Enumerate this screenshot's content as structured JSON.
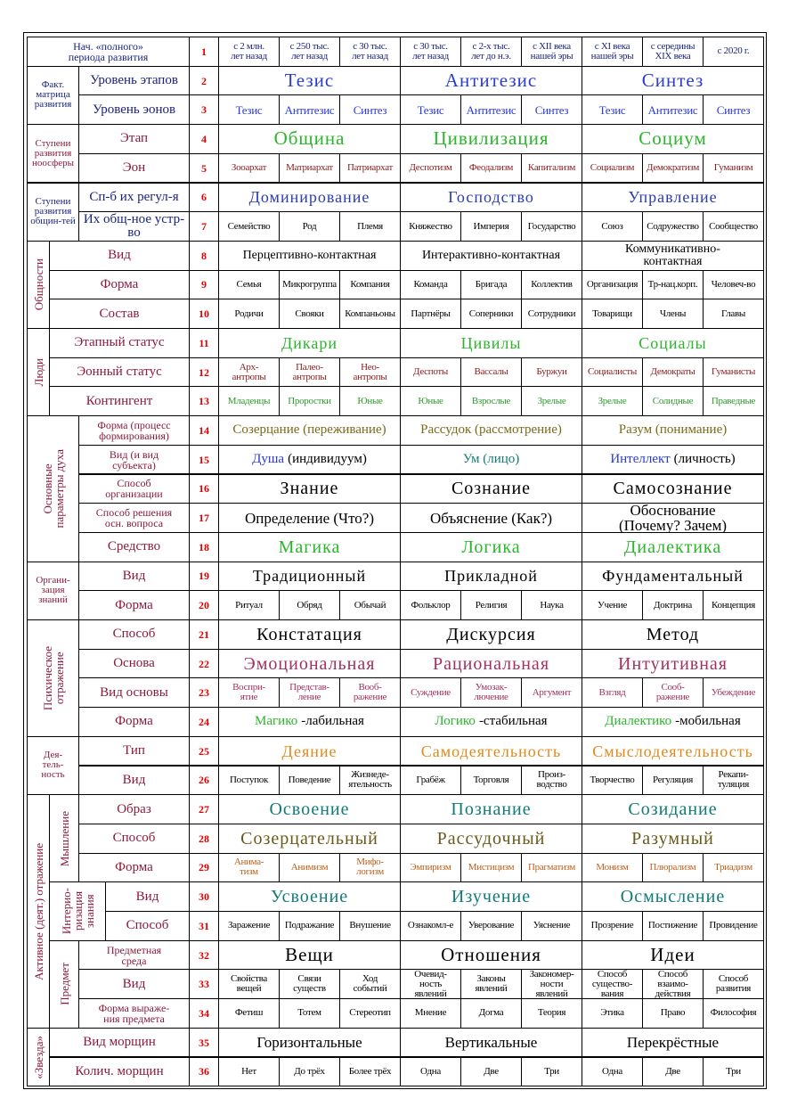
{
  "header": {
    "number": 1,
    "label": "Нач. «полного»\nпериода развития",
    "color": "#1a237e",
    "cells": [
      "с 2 млн.\nлет назад",
      "с 250 тыс.\nлет назад",
      "с 30 тыс.\nлет назад",
      "с 30 тыс.\nлет назад",
      "с 2-х тыс.\nлет до н.э.",
      "с XII века\nнашей эры",
      "с XI века\nнашей эры",
      "с середины\nXIX века",
      "с 2020 г."
    ]
  },
  "groups": [
    {
      "label": "Факт.\nматрица\nразвития",
      "label_color": "#1a237e",
      "rows": [
        {
          "number": 2,
          "label": "Уровень этапов",
          "color": "#2a3bd6",
          "cells": [
            "Тезис",
            "Антитезис",
            "Синтез"
          ]
        },
        {
          "number": 3,
          "label": "Уровень эонов",
          "color": "#2a3bd6",
          "cells": [
            "Тезис",
            "Антитезис",
            "Синтез",
            "Тезис",
            "Антитезис",
            "Синтез",
            "Тезис",
            "Антитезис",
            "Синтез"
          ]
        }
      ]
    },
    {
      "label": "Ступени\nразвития\nноосферы",
      "label_color": "#8b1a3a",
      "rows": [
        {
          "number": 4,
          "label": "Этап",
          "color": "#2bb52b",
          "cells": [
            "Община",
            "Цивилизация",
            "Социум"
          ]
        },
        {
          "number": 5,
          "label": "Эон",
          "color": "#8b1a1a",
          "cells": [
            "Зооархат",
            "Матриархат",
            "Патриархат",
            "Деспотизм",
            "Феодализм",
            "Капитализм",
            "Социализм",
            "Демократизм",
            "Гуманизм"
          ]
        }
      ]
    },
    {
      "label": "Ступени\nразвития\nобщин-тей",
      "label_color": "#1a237e",
      "rows": [
        {
          "number": 6,
          "label": "Сп-б их регул-я",
          "color": "#2a3bb6",
          "cells": [
            "Доминирование",
            "Господство",
            "Управление"
          ]
        },
        {
          "number": 7,
          "label": "Их общ-ное устр-во",
          "color": "#000000",
          "cells": [
            "Семейство",
            "Род",
            "Племя",
            "Княжество",
            "Империя",
            "Государство",
            "Союз",
            "Содружество",
            "Сообщество"
          ]
        }
      ]
    },
    {
      "label": "Общности",
      "vertical": true,
      "label_color": "#8b1a3a",
      "rows": [
        {
          "number": 8,
          "label": "Вид",
          "color": "#000000",
          "cells": [
            "Перцептивно-контактная",
            "Интерактивно-контактная",
            "Коммуникативно-\nконтактная"
          ]
        },
        {
          "number": 9,
          "label": "Форма",
          "color": "#000000",
          "cells": [
            "Семья",
            "Микрогруппа",
            "Компания",
            "Команда",
            "Бригада",
            "Коллектив",
            "Организация",
            "Тр-нац.корп.",
            "Человеч-во"
          ]
        },
        {
          "number": 10,
          "label": "Состав",
          "color": "#000000",
          "cells": [
            "Родичи",
            "Свояки",
            "Компаньоны",
            "Партнёры",
            "Соперники",
            "Сотрудники",
            "Товарищи",
            "Члены",
            "Главы"
          ]
        }
      ]
    },
    {
      "label": "Люди",
      "vertical": true,
      "label_color": "#8b1a3a",
      "rows": [
        {
          "number": 11,
          "label": "Этапный статус",
          "color": "#2bb52b",
          "cells": [
            "Дикари",
            "Цивилы",
            "Социалы"
          ]
        },
        {
          "number": 12,
          "label": "Эонный статус",
          "color": "#8b1a1a",
          "cells": [
            "Арх-\nантропы",
            "Палео-\nантропы",
            "Нео-\nантропы",
            "Деспоты",
            "Вассалы",
            "Буржуи",
            "Социалисты",
            "Демократы",
            "Гуманисты"
          ]
        },
        {
          "number": 13,
          "label": "Контингент",
          "color": "#2b9b2b",
          "cells": [
            "Младенцы",
            "Проростки",
            "Юные",
            "Юные",
            "Взрослые",
            "Зрелые",
            "Зрелые",
            "Солидные",
            "Праведные"
          ]
        }
      ]
    },
    {
      "label": "Основные\nпараметры духа",
      "vertical": true,
      "label_color": "#8b1a3a",
      "rows": [
        {
          "number": 14,
          "label": "Форма (процесс\nформирования)",
          "color": "#7a6a1a",
          "cells": [
            "Созерцание (переживание)",
            "Рассудок (рассмотрение)",
            "Разум (понимание)"
          ]
        },
        {
          "number": 15,
          "label": "Вид  (и вид\nсубъекта)",
          "color": "#137a7a",
          "part_colors": [
            "#2a3bd6",
            "#000000"
          ],
          "cells": [
            [
              "Душа",
              "(индивидуум)"
            ],
            "Ум (лицо)",
            [
              "Интеллект",
              "(личность)"
            ]
          ]
        },
        {
          "number": 16,
          "label": "Способ\nорганизации",
          "color": "#000000",
          "cells": [
            "Знание",
            "Сознание",
            "Самосознание"
          ]
        },
        {
          "number": 17,
          "label": "Способ решения\nосн. вопроса",
          "color": "#000000",
          "cells": [
            "Определение (Что?)",
            "Объяснение (Как?)",
            "Обоснование\n(Почему? Зачем)"
          ]
        },
        {
          "number": 18,
          "label": "Средство",
          "color": "#2bb52b",
          "cells": [
            "Магика",
            "Логика",
            "Диалектика"
          ]
        }
      ]
    },
    {
      "label": "Органи-\nзация\nзнаний",
      "label_color": "#8b1a3a",
      "rows": [
        {
          "number": 19,
          "label": "Вид",
          "color": "#000000",
          "cells": [
            "Традиционный",
            "Прикладной",
            "Фундаментальный"
          ]
        },
        {
          "number": 20,
          "label": "Форма",
          "color": "#000000",
          "cells": [
            "Ритуал",
            "Обряд",
            "Обычай",
            "Фольклор",
            "Религия",
            "Наука",
            "Учение",
            "Доктрина",
            "Концепция"
          ]
        }
      ]
    },
    {
      "label": "Психическое\nотражение",
      "vertical": true,
      "label_color": "#8b1a3a",
      "rows": [
        {
          "number": 21,
          "label": "Способ",
          "color": "#000000",
          "cells": [
            "Констатация",
            "Дискурсия",
            "Метод"
          ]
        },
        {
          "number": 22,
          "label": "Основа",
          "color": "#a3305e",
          "cells": [
            "Эмоциональная",
            "Рациональная",
            "Интуитивная"
          ]
        },
        {
          "number": 23,
          "label": "Вид основы",
          "color": "#a3305e",
          "cells": [
            "Воспри-\nятие",
            "Представ-\nление",
            "Вооб-\nражение",
            "Суждение",
            "Умозак-\nлючение",
            "Аргумент",
            "Взгляд",
            "Сооб-\nражение",
            "Убеждение"
          ]
        },
        {
          "number": 24,
          "label": "Форма",
          "color": "#000000",
          "part_colors": [
            "#2bb52b",
            "#000000"
          ],
          "cells": [
            [
              "Магико",
              "-лабильная"
            ],
            [
              "Логико",
              "-стабильная"
            ],
            [
              "Диалектико",
              "-мобильная"
            ]
          ]
        }
      ]
    },
    {
      "label": "Дея-\nтель-\nность",
      "label_color": "#8b1a3a",
      "rows": [
        {
          "number": 25,
          "label": "Тип",
          "color": "#e08a1a",
          "cells": [
            "Деяние",
            "Самодеятельность",
            "Смыслодеятельность"
          ]
        },
        {
          "number": 26,
          "label": "Вид",
          "color": "#000000",
          "cells": [
            "Поступок",
            "Поведение",
            "Жизнеде-\nятельность",
            "Грабёж",
            "Торговля",
            "Произ-\nводство",
            "Творчество",
            "Регуляция",
            "Рекапи-\nтуляция"
          ]
        }
      ]
    },
    {
      "label": "Активное (деят.) отражение",
      "vertical": true,
      "label_color": "#8b1a3a",
      "subgroups": [
        {
          "label": "Мышление",
          "vertical": true,
          "label_color": "#8b1a3a",
          "rows": [
            {
              "number": 27,
              "label": "Образ",
              "color": "#137a7a",
              "cells": [
                "Освоение",
                "Познание",
                "Созидание"
              ]
            },
            {
              "number": 28,
              "label": "Способ",
              "color": "#6a5a1a",
              "cells": [
                "Созерцательный",
                "Рассудочный",
                "Разумный"
              ]
            },
            {
              "number": 29,
              "label": "Форма",
              "color": "#c0601a",
              "cells": [
                "Анима-\nтизм",
                "Анимизм",
                "Мифо-\nлогизм",
                "Эмпиризм",
                "Мистицизм",
                "Прагматизм",
                "Монизм",
                "Плюрализм",
                "Триадизм"
              ]
            }
          ]
        },
        {
          "label": "Интерио-\nризация\nзнания",
          "vertical": true,
          "label_color": "#8b1a3a",
          "rows": [
            {
              "number": 30,
              "label": "Вид",
              "color": "#137a7a",
              "cells": [
                "Усвоение",
                "Изучение",
                "Осмысление"
              ]
            },
            {
              "number": 31,
              "label": "Способ",
              "color": "#000000",
              "cells": [
                "Заражение",
                "Подражание",
                "Внушение",
                "Ознакомл-е",
                "Уверование",
                "Уяснение",
                "Прозрение",
                "Постижение",
                "Провидение"
              ]
            }
          ]
        },
        {
          "label": "Предмет",
          "vertical": true,
          "label_color": "#8b1a3a",
          "rows": [
            {
              "number": 32,
              "label": "Предметная\nсреда",
              "color": "#000000",
              "cells": [
                "Вещи",
                "Отношения",
                "Идеи"
              ]
            },
            {
              "number": 33,
              "label": "Вид",
              "color": "#000000",
              "cells": [
                "Свойства\nвещей",
                "Связи\nсуществ",
                "Ход\nсобытий",
                "Очевид-\nность\nявлений",
                "Законы\nявлений",
                "Закономер-\nности\nявлений",
                "Способ\nсущество-\nвания",
                "Способ\nвзаимо-\nдействия",
                "Способ\nразвития"
              ]
            },
            {
              "number": 34,
              "label": "Форма выраже-\nния предмета",
              "color": "#000000",
              "cells": [
                "Фетиш",
                "Тотем",
                "Стереотип",
                "Мнение",
                "Догма",
                "Теория",
                "Этика",
                "Право",
                "Философия"
              ]
            }
          ]
        }
      ]
    },
    {
      "label": "«Звезда»",
      "vertical": true,
      "label_color": "#8b1a3a",
      "rows": [
        {
          "number": 35,
          "label": "Вид морщин",
          "color": "#000000",
          "cells": [
            "Горизонтальные",
            "Вертикальные",
            "Перекрёстные"
          ]
        },
        {
          "number": 36,
          "label": "Колич. морщин",
          "color": "#000000",
          "cells": [
            "Нет",
            "До трёх",
            "Более трёх",
            "Одна",
            "Две",
            "Три",
            "Одна",
            "Две",
            "Три"
          ]
        }
      ]
    }
  ]
}
